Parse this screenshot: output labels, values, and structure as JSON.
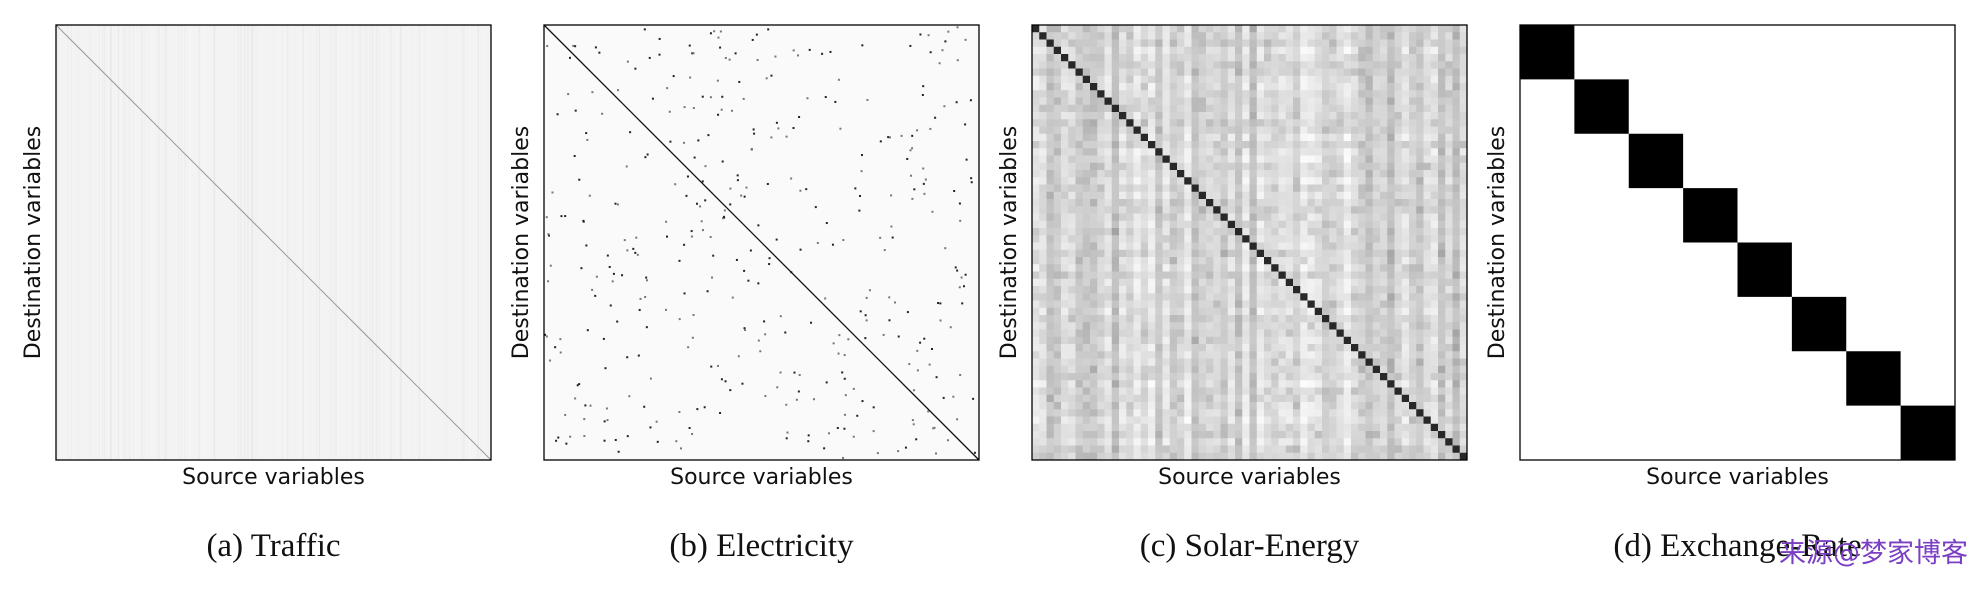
{
  "panels": [
    {
      "ylabel": "Destination variables",
      "xlabel": "Source variables",
      "caption": "(a) Traffic"
    },
    {
      "ylabel": "Destination variables",
      "xlabel": "Source variables",
      "caption": "(b) Electricity"
    },
    {
      "ylabel": "Destination variables",
      "xlabel": "Source variables",
      "caption": "(c) Solar-Energy"
    },
    {
      "ylabel": "Destination variables",
      "xlabel": "Source variables",
      "caption": "(d) Exchange-Rate"
    }
  ],
  "watermark": "来源@梦家博客"
}
